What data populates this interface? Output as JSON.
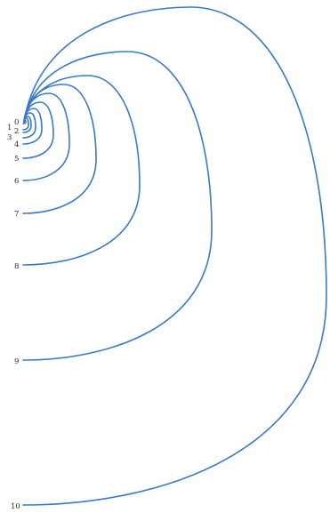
{
  "diagram": {
    "stroke_color": "#3a78c9",
    "label_color": "#2a2a2a",
    "labels": [
      "0",
      "1",
      "2",
      "3",
      "4",
      "5",
      "6",
      "7",
      "8",
      "9",
      "10"
    ]
  }
}
